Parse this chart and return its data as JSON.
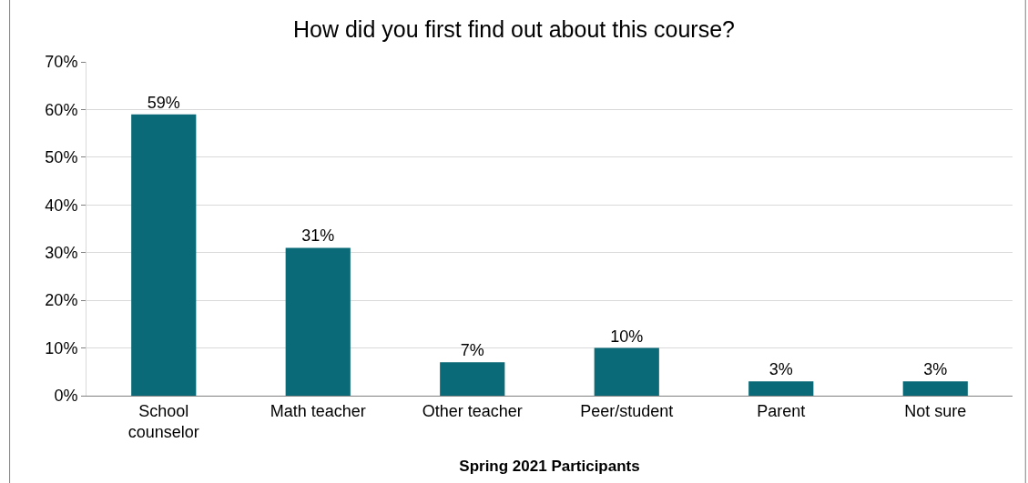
{
  "chart_data": {
    "type": "bar",
    "title": "How did you first find out about this course?",
    "xlabel": "Spring 2021 Participants",
    "categories": [
      "School counselor",
      "Math teacher",
      "Other teacher",
      "Peer/student",
      "Parent",
      "Not sure"
    ],
    "values": [
      59,
      31,
      7,
      10,
      3,
      3
    ],
    "value_labels": [
      "59%",
      "31%",
      "7%",
      "10%",
      "3%",
      "3%"
    ],
    "color": "#0b6a78",
    "ylim": [
      0,
      70
    ],
    "yticks": [
      {
        "value": 0,
        "label": "0%"
      },
      {
        "value": 10,
        "label": "10%"
      },
      {
        "value": 20,
        "label": "20%"
      },
      {
        "value": 30,
        "label": "30%"
      },
      {
        "value": 40,
        "label": "40%"
      },
      {
        "value": 50,
        "label": "50%"
      },
      {
        "value": 60,
        "label": "60%"
      },
      {
        "value": 70,
        "label": "70%"
      }
    ],
    "grid": "y",
    "legend": false
  }
}
